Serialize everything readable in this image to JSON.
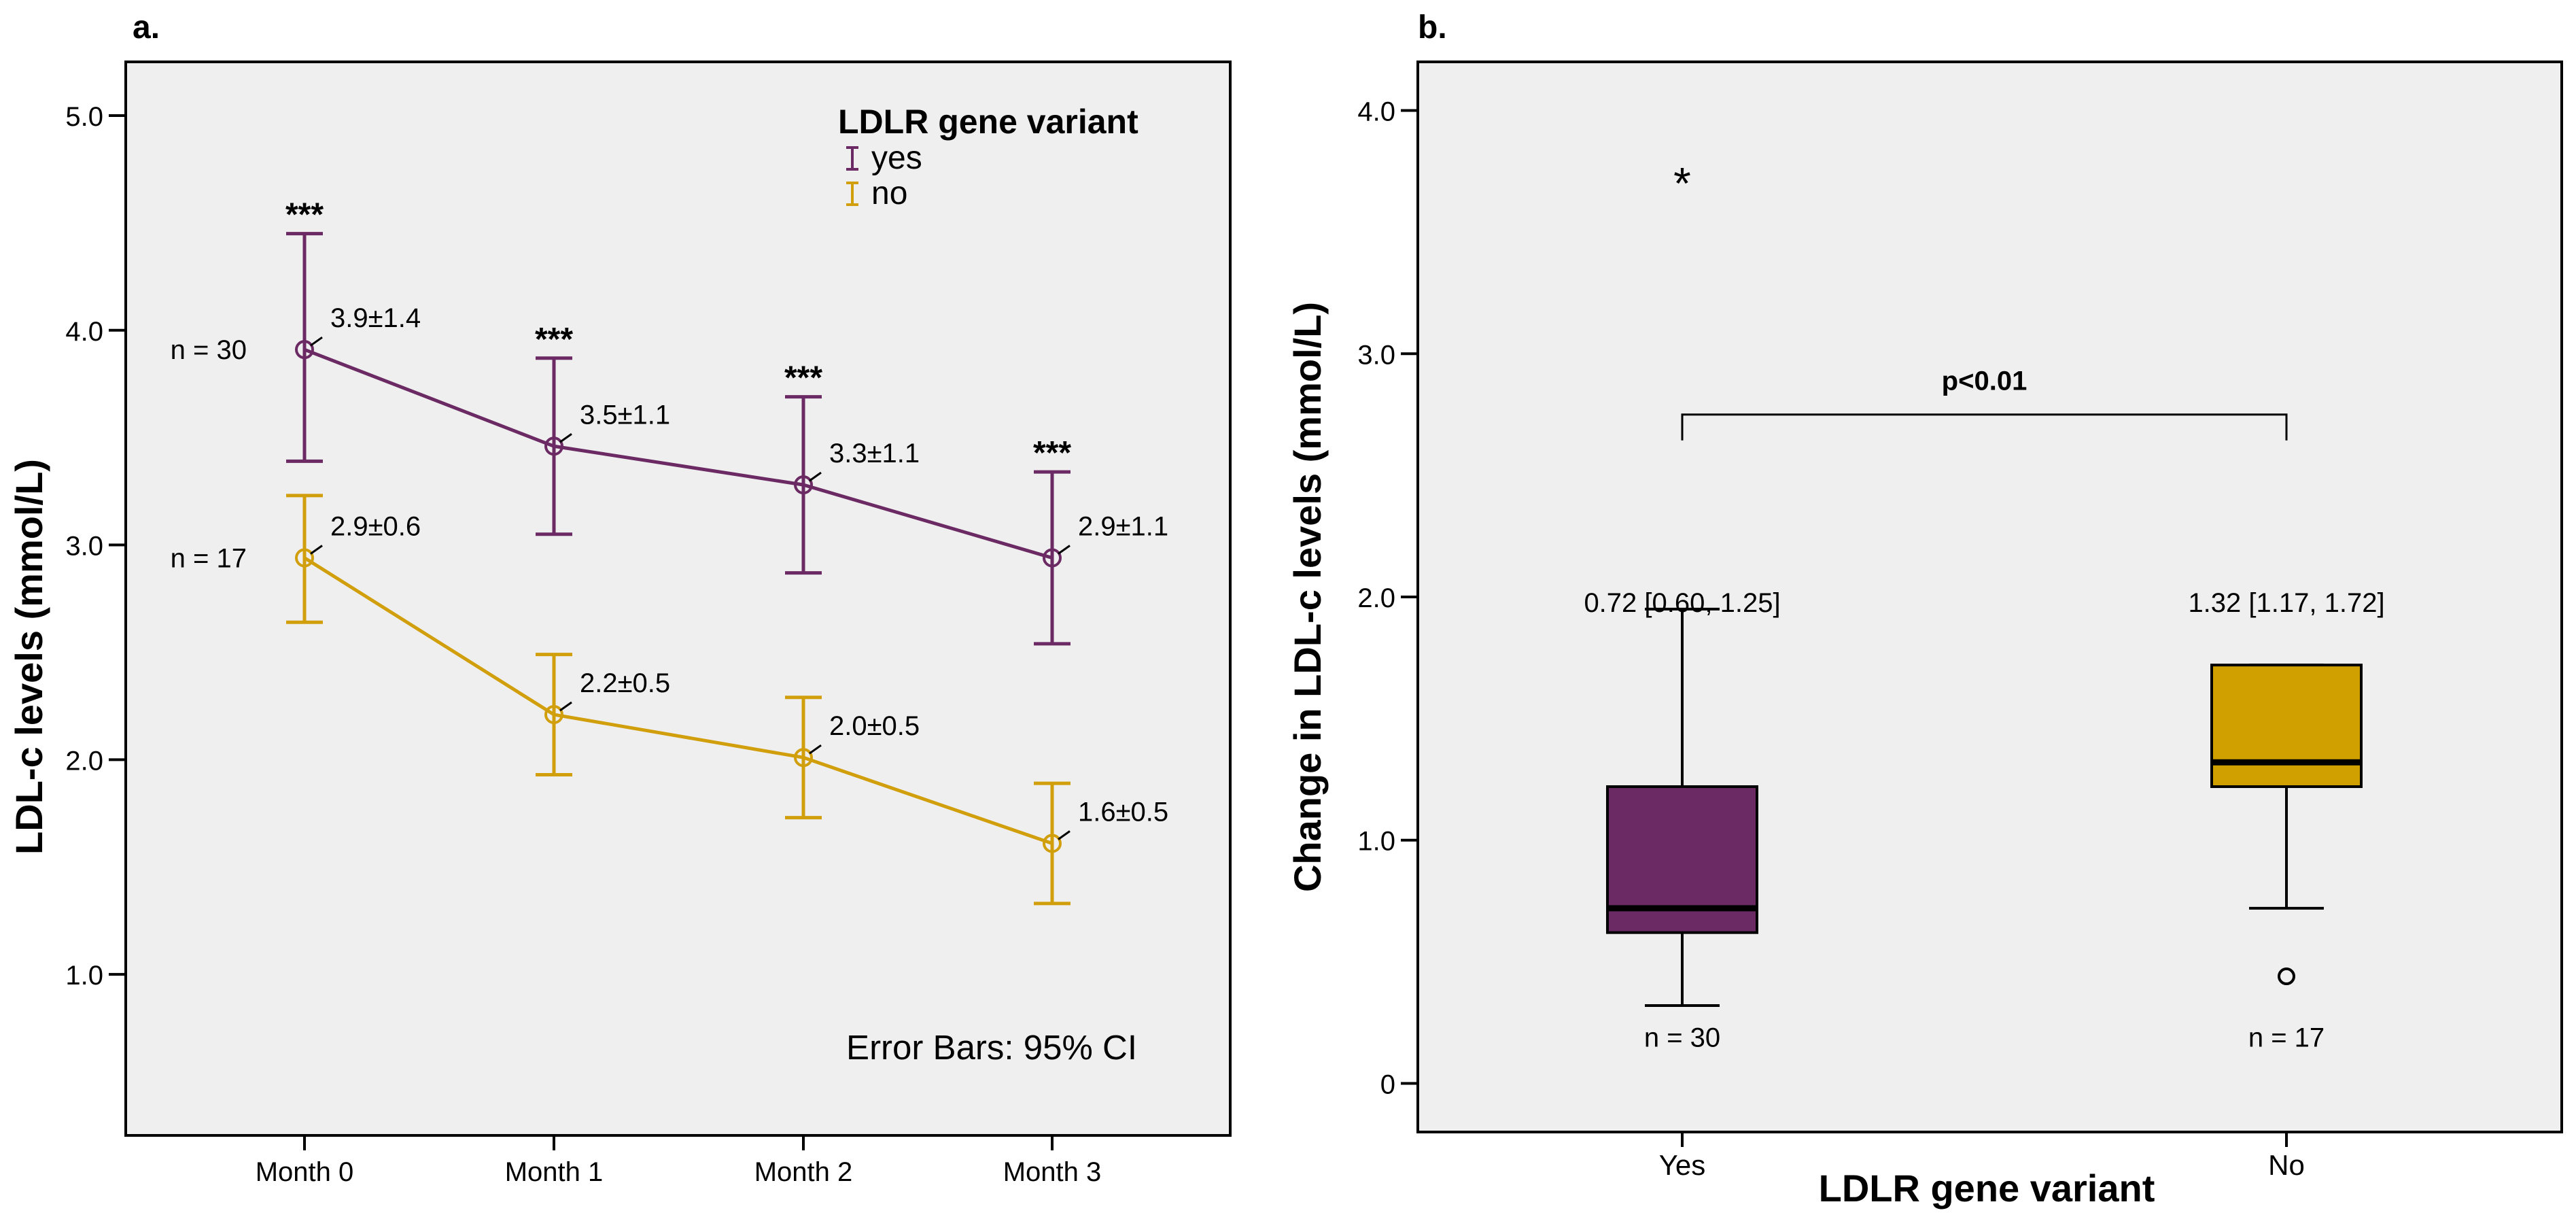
{
  "chart_data": [
    {
      "panel_label": "a.",
      "type": "line",
      "xlabel": "",
      "ylabel": "LDL-c levels (mmol/L)",
      "categories": [
        "Month 0",
        "Month 1",
        "Month 2",
        "Month 3"
      ],
      "ylim": [
        0.25,
        5.25
      ],
      "yticks": [
        1.0,
        2.0,
        3.0,
        4.0,
        5.0
      ],
      "ytick_labels": [
        "1.0",
        "2.0",
        "3.0",
        "4.0",
        "5.0"
      ],
      "legend": {
        "title": "LDLR gene variant",
        "position": "top-right"
      },
      "footnote": "Error Bars: 95% CI",
      "series": [
        {
          "name": "yes",
          "color": "#6b2a63",
          "n_label": "n = 30",
          "values": [
            3.91,
            3.46,
            3.28,
            2.94
          ],
          "ci_low": [
            3.39,
            3.05,
            2.87,
            2.54
          ],
          "ci_high": [
            4.45,
            3.87,
            3.69,
            3.34
          ],
          "labels": [
            "3.9±1.4",
            "3.5±1.1",
            "3.3±1.1",
            "2.9±1.1"
          ],
          "significance": [
            "***",
            "***",
            "***",
            "***"
          ]
        },
        {
          "name": "no",
          "color": "#d19e0c",
          "n_label": "n = 17",
          "values": [
            2.94,
            2.21,
            2.01,
            1.61
          ],
          "ci_low": [
            2.64,
            1.93,
            1.73,
            1.33
          ],
          "ci_high": [
            3.23,
            2.49,
            2.29,
            1.89
          ],
          "labels": [
            "2.9±0.6",
            "2.2±0.5",
            "2.0±0.5",
            "1.6±0.5"
          ]
        }
      ]
    },
    {
      "panel_label": "b.",
      "type": "box",
      "xlabel": "LDLR gene variant",
      "ylabel": "Change in LDL-c levels (mmol/L)",
      "categories": [
        "Yes",
        "No"
      ],
      "ylim": [
        -0.2,
        4.2
      ],
      "yticks": [
        0,
        1.0,
        2.0,
        3.0,
        4.0
      ],
      "ytick_labels": [
        "0",
        "1.0",
        "2.0",
        "3.0",
        "4.0"
      ],
      "significance": {
        "text": "p<0.01",
        "y": 2.75
      },
      "boxes": [
        {
          "name": "Yes",
          "color": "#6b2a63",
          "whisker_low": 0.32,
          "q1": 0.62,
          "median": 0.72,
          "q3": 1.22,
          "whisker_high": 1.95,
          "outliers": [
            {
              "value": 3.72,
              "marker": "*"
            }
          ],
          "summary": "0.72 [0.60, 1.25]",
          "n_label": "n = 30"
        },
        {
          "name": "No",
          "color": "#d09f00",
          "whisker_low": 0.72,
          "q1": 1.22,
          "median": 1.32,
          "q3": 1.72,
          "whisker_high": 1.72,
          "outliers": [
            {
              "value": 0.44,
              "marker": "o"
            }
          ],
          "summary": "1.32 [1.17, 1.72]",
          "n_label": "n = 17"
        }
      ]
    }
  ]
}
